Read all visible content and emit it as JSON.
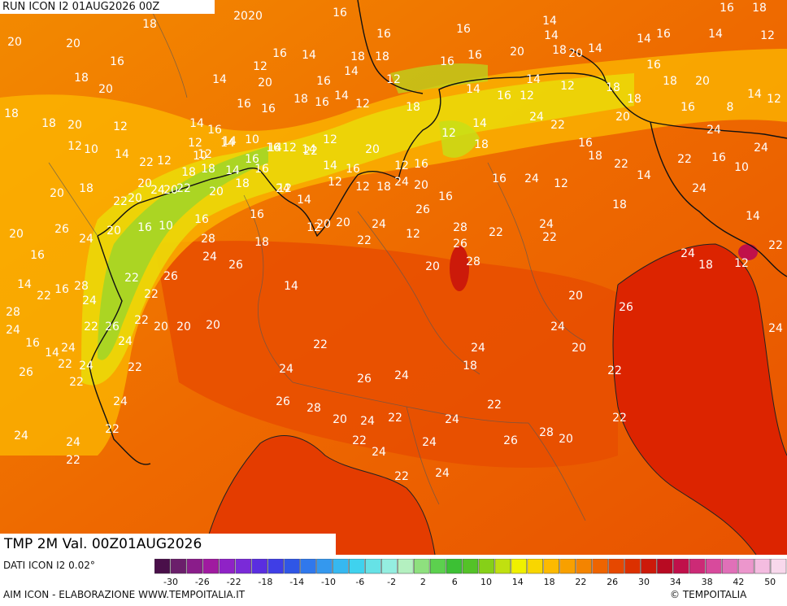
{
  "run_label": "RUN ICON I2 01AUG2026 00Z",
  "title": "TMP 2M Val. 00Z01AUG2026",
  "data_source": "DATI ICON I2 0.02°",
  "credit": "AIM ICON - ELABORAZIONE WWW.TEMPOITALIA.IT",
  "brand": "TEMPOITALIA",
  "brand_icon": "copyright-icon",
  "legend": {
    "colors": [
      "#4a0f4a",
      "#6b1f6b",
      "#8a1c8a",
      "#a01aa0",
      "#8f22c6",
      "#7a2ad8",
      "#5a2ee0",
      "#3f3ee6",
      "#2f56e6",
      "#3078ec",
      "#3498ee",
      "#36b8f0",
      "#3fd2ee",
      "#66e2e6",
      "#94eee0",
      "#b4f0c0",
      "#8ee07e",
      "#5cd04e",
      "#3cc034",
      "#54c228",
      "#86d018",
      "#c0e010",
      "#f0f000",
      "#f8d600",
      "#fcba00",
      "#f8a000",
      "#f48400",
      "#ee6400",
      "#e64800",
      "#dc3000",
      "#cc1a0a",
      "#b80a22",
      "#c0104a",
      "#cc2a76",
      "#d84a9c",
      "#e070b8",
      "#ec96cc",
      "#f4bce0",
      "#f8d8ec"
    ],
    "tick_labels": [
      "-30",
      "-26",
      "-22",
      "-18",
      "-14",
      "-10",
      "-6",
      "-2",
      "2",
      "6",
      "10",
      "14",
      "18",
      "22",
      "26",
      "30",
      "34",
      "38",
      "42",
      "50"
    ]
  },
  "values": [
    "20",
    "20",
    "20",
    "18",
    "16",
    "16",
    "18",
    "20",
    "18",
    "16",
    "16",
    "14",
    "16",
    "14",
    "12",
    "14",
    "14",
    "16",
    "16",
    "14",
    "18",
    "18",
    "16",
    "20",
    "18",
    "20",
    "14",
    "16",
    "16",
    "14",
    "12",
    "14",
    "16",
    "12",
    "14",
    "12",
    "18",
    "20",
    "20",
    "14",
    "12",
    "18",
    "16",
    "16",
    "18",
    "16",
    "14",
    "16",
    "12",
    "18",
    "18",
    "20",
    "14",
    "12",
    "14",
    "16",
    "18",
    "20",
    "12",
    "12",
    "14",
    "10",
    "16",
    "12",
    "14",
    "12",
    "20",
    "18",
    "12",
    "14",
    "24",
    "22",
    "16",
    "8",
    "16",
    "20",
    "12",
    "10",
    "14",
    "16",
    "12",
    "14",
    "22",
    "14",
    "16",
    "12",
    "16",
    "18",
    "18",
    "24",
    "24",
    "14",
    "22",
    "12",
    "10",
    "14",
    "16",
    "20",
    "20",
    "18",
    "18",
    "18",
    "12",
    "14",
    "12",
    "12",
    "18",
    "24",
    "20",
    "16",
    "16",
    "24",
    "12",
    "22",
    "14",
    "22",
    "16",
    "10",
    "20",
    "16",
    "20",
    "18",
    "22",
    "20",
    "24",
    "22",
    "20",
    "16",
    "24",
    "20",
    "20",
    "24",
    "26",
    "28",
    "22",
    "22",
    "18",
    "24",
    "14",
    "22",
    "26",
    "24",
    "20",
    "16",
    "10",
    "16",
    "28",
    "26",
    "18",
    "14",
    "12",
    "22",
    "12",
    "20",
    "26",
    "28",
    "24",
    "24",
    "18",
    "12",
    "14",
    "22",
    "16",
    "28",
    "24",
    "22",
    "22",
    "26",
    "24",
    "20",
    "28",
    "16",
    "14",
    "24",
    "22",
    "26",
    "24",
    "22",
    "20",
    "20",
    "22",
    "26",
    "24",
    "18",
    "24",
    "24",
    "20",
    "20",
    "26",
    "24",
    "24",
    "26",
    "22",
    "22",
    "24",
    "24",
    "22",
    "24",
    "26",
    "28",
    "20",
    "22",
    "24",
    "22",
    "24",
    "24",
    "24",
    "22",
    "24",
    "22",
    "26",
    "28",
    "20",
    "22",
    "22",
    "24",
    "24",
    "22",
    "22"
  ]
}
